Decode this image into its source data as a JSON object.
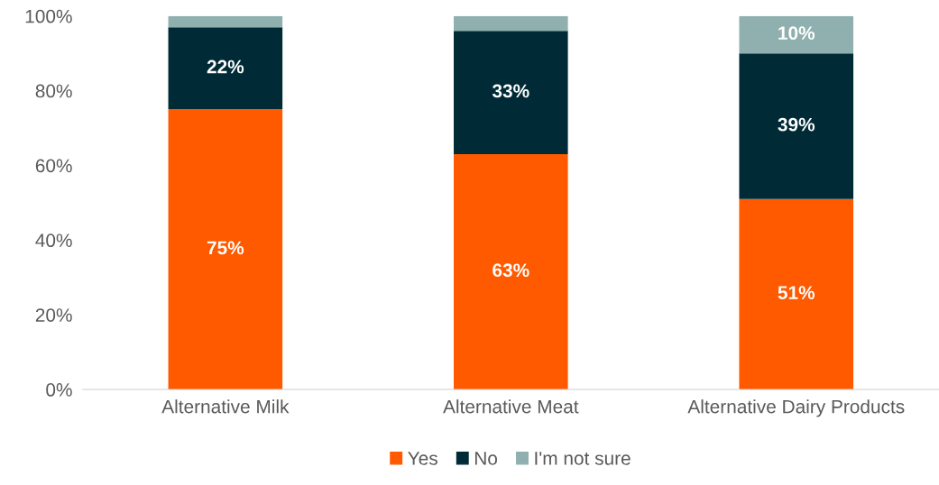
{
  "chart_data": {
    "type": "bar",
    "stacked": true,
    "categories": [
      "Alternative Milk",
      "Alternative Meat",
      "Alternative Dairy Products"
    ],
    "series": [
      {
        "name": "Yes",
        "color": "#ff5a00",
        "values": [
          75,
          63,
          51
        ],
        "value_labels": [
          "75%",
          "63%",
          "51%"
        ]
      },
      {
        "name": "No",
        "color": "#002b36",
        "values": [
          22,
          33,
          39
        ],
        "value_labels": [
          "22%",
          "33%",
          "39%"
        ]
      },
      {
        "name": "I'm not sure",
        "color": "#8fb0ae",
        "values": [
          3,
          4,
          10
        ],
        "value_labels": [
          null,
          null,
          "10%"
        ]
      }
    ],
    "ylim": [
      0,
      100
    ],
    "yticks": [
      {
        "value": 0,
        "label": "0%"
      },
      {
        "value": 20,
        "label": "20%"
      },
      {
        "value": 40,
        "label": "40%"
      },
      {
        "value": 60,
        "label": "60%"
      },
      {
        "value": 80,
        "label": "80%"
      },
      {
        "value": 100,
        "label": "100%"
      }
    ],
    "grid": false,
    "legend": "bottom"
  }
}
